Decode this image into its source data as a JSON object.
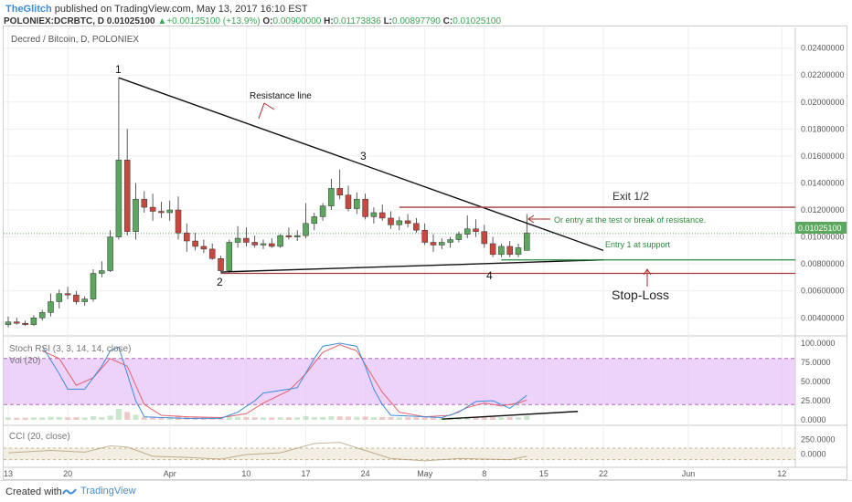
{
  "header": {
    "publisher": "TheGlitch",
    "published_text": "published on TradingView.com, May 13, 2017 16:10 EST",
    "symbol": "POLONIEX:DCRBTC, D",
    "last": "0.01025100",
    "change": "+0.00125100 (+13.9%)",
    "o_label": "O:",
    "o": "0.00900000",
    "h_label": "H:",
    "h": "0.01173836",
    "l_label": "L:",
    "l": "0.00897790",
    "c_label": "C:",
    "c": "0.01025100"
  },
  "footer": {
    "created_with": "Created with",
    "brand": "TradingView"
  },
  "colors": {
    "up": "#5aa75d",
    "down": "#c9473e",
    "price_label_bg": "#5aa75d",
    "stoch_k": "#3d8dd8",
    "stoch_d": "#e8606a",
    "band_fill": "#e7c3f8",
    "exit_line": "#a33a3a",
    "entry_line": "#2e8a3a",
    "stop_line": "#a33a3a",
    "annotation_red": "#b02a2a",
    "annotation_green": "#2e8a3a"
  },
  "chart_data": {
    "type": "candlestick",
    "title": "Decred / Bitcoin, D, POLONIEX",
    "last_price_label": "0.01025100",
    "y_ticks": [
      "0.02400000",
      "0.02200000",
      "0.02000000",
      "0.01800000",
      "0.01600000",
      "0.01400000",
      "0.01200000",
      "0.01000000",
      "0.00800000",
      "0.00600000",
      "0.00400000"
    ],
    "y_tick_values": [
      0.024,
      0.022,
      0.02,
      0.018,
      0.016,
      0.014,
      0.012,
      0.01,
      0.008,
      0.006,
      0.004
    ],
    "ylim": [
      0.0028,
      0.0254
    ],
    "x_tick_labels": [
      "13",
      "20",
      "Apr",
      "10",
      "17",
      "24",
      "May",
      "8",
      "15",
      "22",
      "Jun",
      "12"
    ],
    "x_tick_days": [
      0,
      7,
      19,
      28,
      35,
      42,
      49,
      56,
      63,
      70,
      80,
      91
    ],
    "candles": [
      {
        "d": 0,
        "o": 0.0035,
        "h": 0.0041,
        "l": 0.0033,
        "c": 0.0037
      },
      {
        "d": 1,
        "o": 0.0037,
        "h": 0.004,
        "l": 0.0035,
        "c": 0.0036
      },
      {
        "d": 2,
        "o": 0.0036,
        "h": 0.0038,
        "l": 0.0034,
        "c": 0.0035
      },
      {
        "d": 3,
        "o": 0.0035,
        "h": 0.0042,
        "l": 0.0034,
        "c": 0.004
      },
      {
        "d": 4,
        "o": 0.004,
        "h": 0.0046,
        "l": 0.0038,
        "c": 0.0044
      },
      {
        "d": 5,
        "o": 0.0044,
        "h": 0.0058,
        "l": 0.0041,
        "c": 0.0052
      },
      {
        "d": 6,
        "o": 0.0052,
        "h": 0.0061,
        "l": 0.0047,
        "c": 0.0058
      },
      {
        "d": 7,
        "o": 0.0058,
        "h": 0.0063,
        "l": 0.0054,
        "c": 0.0057
      },
      {
        "d": 8,
        "o": 0.0057,
        "h": 0.006,
        "l": 0.005,
        "c": 0.0052
      },
      {
        "d": 9,
        "o": 0.0052,
        "h": 0.0056,
        "l": 0.0049,
        "c": 0.0054
      },
      {
        "d": 10,
        "o": 0.0054,
        "h": 0.0076,
        "l": 0.0052,
        "c": 0.0073
      },
      {
        "d": 11,
        "o": 0.0073,
        "h": 0.0082,
        "l": 0.007,
        "c": 0.0075
      },
      {
        "d": 12,
        "o": 0.0075,
        "h": 0.0105,
        "l": 0.0074,
        "c": 0.01
      },
      {
        "d": 13,
        "o": 0.01,
        "h": 0.0218,
        "l": 0.0098,
        "c": 0.0157
      },
      {
        "d": 14,
        "o": 0.0157,
        "h": 0.018,
        "l": 0.0101,
        "c": 0.0104
      },
      {
        "d": 15,
        "o": 0.0104,
        "h": 0.014,
        "l": 0.0098,
        "c": 0.0128
      },
      {
        "d": 16,
        "o": 0.0128,
        "h": 0.0134,
        "l": 0.0118,
        "c": 0.0122
      },
      {
        "d": 17,
        "o": 0.0122,
        "h": 0.0132,
        "l": 0.0112,
        "c": 0.0119
      },
      {
        "d": 18,
        "o": 0.0119,
        "h": 0.0126,
        "l": 0.0114,
        "c": 0.0118
      },
      {
        "d": 19,
        "o": 0.0118,
        "h": 0.0127,
        "l": 0.0112,
        "c": 0.012
      },
      {
        "d": 20,
        "o": 0.012,
        "h": 0.013,
        "l": 0.0098,
        "c": 0.0103
      },
      {
        "d": 21,
        "o": 0.0103,
        "h": 0.011,
        "l": 0.0089,
        "c": 0.0097
      },
      {
        "d": 22,
        "o": 0.0097,
        "h": 0.0103,
        "l": 0.009,
        "c": 0.0093
      },
      {
        "d": 23,
        "o": 0.0093,
        "h": 0.0098,
        "l": 0.0088,
        "c": 0.0091
      },
      {
        "d": 24,
        "o": 0.0091,
        "h": 0.0095,
        "l": 0.0083,
        "c": 0.0084
      },
      {
        "d": 25,
        "o": 0.0084,
        "h": 0.0086,
        "l": 0.0074,
        "c": 0.0075
      },
      {
        "d": 26,
        "o": 0.0075,
        "h": 0.0098,
        "l": 0.0073,
        "c": 0.0096
      },
      {
        "d": 27,
        "o": 0.0096,
        "h": 0.0108,
        "l": 0.0092,
        "c": 0.0099
      },
      {
        "d": 28,
        "o": 0.0099,
        "h": 0.0107,
        "l": 0.0093,
        "c": 0.0096
      },
      {
        "d": 29,
        "o": 0.0096,
        "h": 0.0101,
        "l": 0.0092,
        "c": 0.0094
      },
      {
        "d": 30,
        "o": 0.0094,
        "h": 0.0098,
        "l": 0.0091,
        "c": 0.0095
      },
      {
        "d": 31,
        "o": 0.0095,
        "h": 0.0099,
        "l": 0.0092,
        "c": 0.0093
      },
      {
        "d": 32,
        "o": 0.0093,
        "h": 0.0102,
        "l": 0.0092,
        "c": 0.0101
      },
      {
        "d": 33,
        "o": 0.0101,
        "h": 0.0107,
        "l": 0.0098,
        "c": 0.01
      },
      {
        "d": 34,
        "o": 0.01,
        "h": 0.0105,
        "l": 0.0097,
        "c": 0.0101
      },
      {
        "d": 35,
        "o": 0.0101,
        "h": 0.0125,
        "l": 0.0099,
        "c": 0.011
      },
      {
        "d": 36,
        "o": 0.011,
        "h": 0.0118,
        "l": 0.0105,
        "c": 0.0115
      },
      {
        "d": 37,
        "o": 0.0115,
        "h": 0.0125,
        "l": 0.0112,
        "c": 0.0123
      },
      {
        "d": 38,
        "o": 0.0123,
        "h": 0.0143,
        "l": 0.012,
        "c": 0.0136
      },
      {
        "d": 39,
        "o": 0.0136,
        "h": 0.015,
        "l": 0.0128,
        "c": 0.0131
      },
      {
        "d": 40,
        "o": 0.0131,
        "h": 0.0138,
        "l": 0.0119,
        "c": 0.0121
      },
      {
        "d": 41,
        "o": 0.0121,
        "h": 0.0133,
        "l": 0.0117,
        "c": 0.0128
      },
      {
        "d": 42,
        "o": 0.0128,
        "h": 0.0132,
        "l": 0.0113,
        "c": 0.0115
      },
      {
        "d": 43,
        "o": 0.0115,
        "h": 0.0122,
        "l": 0.011,
        "c": 0.0118
      },
      {
        "d": 44,
        "o": 0.0118,
        "h": 0.0124,
        "l": 0.0112,
        "c": 0.0114
      },
      {
        "d": 45,
        "o": 0.0114,
        "h": 0.0119,
        "l": 0.0106,
        "c": 0.0109
      },
      {
        "d": 46,
        "o": 0.0109,
        "h": 0.0115,
        "l": 0.0105,
        "c": 0.0112
      },
      {
        "d": 47,
        "o": 0.0112,
        "h": 0.0117,
        "l": 0.0107,
        "c": 0.011
      },
      {
        "d": 48,
        "o": 0.011,
        "h": 0.0114,
        "l": 0.0103,
        "c": 0.0105
      },
      {
        "d": 49,
        "o": 0.0105,
        "h": 0.011,
        "l": 0.0094,
        "c": 0.0096
      },
      {
        "d": 50,
        "o": 0.0096,
        "h": 0.0102,
        "l": 0.0089,
        "c": 0.0094
      },
      {
        "d": 51,
        "o": 0.0094,
        "h": 0.0099,
        "l": 0.0091,
        "c": 0.0096
      },
      {
        "d": 52,
        "o": 0.0096,
        "h": 0.01,
        "l": 0.0092,
        "c": 0.0098
      },
      {
        "d": 53,
        "o": 0.0098,
        "h": 0.0104,
        "l": 0.0096,
        "c": 0.0102
      },
      {
        "d": 54,
        "o": 0.0102,
        "h": 0.0116,
        "l": 0.0099,
        "c": 0.0106
      },
      {
        "d": 55,
        "o": 0.0106,
        "h": 0.0113,
        "l": 0.01,
        "c": 0.0104
      },
      {
        "d": 56,
        "o": 0.0104,
        "h": 0.0109,
        "l": 0.0092,
        "c": 0.0095
      },
      {
        "d": 57,
        "o": 0.0095,
        "h": 0.01,
        "l": 0.0085,
        "c": 0.0087
      },
      {
        "d": 58,
        "o": 0.0087,
        "h": 0.0095,
        "l": 0.0085,
        "c": 0.0093
      },
      {
        "d": 59,
        "o": 0.0093,
        "h": 0.0097,
        "l": 0.0085,
        "c": 0.0087
      },
      {
        "d": 60,
        "o": 0.0087,
        "h": 0.0095,
        "l": 0.0085,
        "c": 0.0092
      },
      {
        "d": 61,
        "o": 0.009,
        "h": 0.0117,
        "l": 0.009,
        "c": 0.0103
      }
    ],
    "lines": [
      {
        "name": "resistance",
        "d1": 13,
        "p1": 0.0218,
        "d2": 70,
        "p2": 0.009
      },
      {
        "name": "support",
        "d1": 25,
        "p1": 0.0074,
        "d2": 70,
        "p2": 0.0083
      }
    ],
    "hlines": [
      {
        "name": "exit",
        "price": 0.0122,
        "d_from": 46
      },
      {
        "name": "entry",
        "price": 0.0083,
        "d_from": 58
      },
      {
        "name": "stop",
        "price": 0.0073,
        "d_from": 25
      }
    ],
    "annotations": {
      "n1": "1",
      "n2": "2",
      "n3": "3",
      "n4": "4",
      "resistance_line": "Resistance line",
      "exit": "Exit 1/2",
      "or_entry": "Or entry at the test or break of resistance.",
      "entry1": "Entry 1 at support",
      "stop_loss": "Stop-Loss"
    },
    "stoch": {
      "label": "Stoch RSI (3, 3, 14, 14, close)",
      "vol_label": "Vol (20)",
      "y_ticks": [
        "100.0000",
        "75.0000",
        "50.0000",
        "25.0000",
        "0.0000"
      ],
      "y_tick_values": [
        100,
        75,
        50,
        25,
        0
      ],
      "band": [
        20,
        80
      ],
      "k": [
        [
          4,
          96
        ],
        [
          6,
          60
        ],
        [
          7,
          40
        ],
        [
          9,
          40
        ],
        [
          11,
          70
        ],
        [
          12,
          90
        ],
        [
          13,
          95
        ],
        [
          15,
          25
        ],
        [
          16,
          4
        ],
        [
          18,
          3
        ],
        [
          21,
          2
        ],
        [
          25,
          2
        ],
        [
          27,
          10
        ],
        [
          29,
          25
        ],
        [
          30,
          35
        ],
        [
          33,
          40
        ],
        [
          34,
          42
        ],
        [
          36,
          80
        ],
        [
          37,
          96
        ],
        [
          39,
          100
        ],
        [
          41,
          96
        ],
        [
          42,
          70
        ],
        [
          43,
          40
        ],
        [
          44,
          20
        ],
        [
          45,
          6
        ],
        [
          47,
          5
        ],
        [
          51,
          3
        ],
        [
          53,
          10
        ],
        [
          55,
          24
        ],
        [
          57,
          25
        ],
        [
          59,
          15
        ],
        [
          61,
          32
        ]
      ],
      "d": [
        [
          4,
          90
        ],
        [
          6,
          80
        ],
        [
          8,
          45
        ],
        [
          10,
          55
        ],
        [
          12,
          80
        ],
        [
          14,
          70
        ],
        [
          16,
          20
        ],
        [
          18,
          6
        ],
        [
          21,
          4
        ],
        [
          25,
          3
        ],
        [
          28,
          8
        ],
        [
          30,
          22
        ],
        [
          33,
          38
        ],
        [
          35,
          60
        ],
        [
          37,
          88
        ],
        [
          39,
          98
        ],
        [
          41,
          90
        ],
        [
          42,
          72
        ],
        [
          44,
          36
        ],
        [
          46,
          10
        ],
        [
          49,
          4
        ],
        [
          52,
          6
        ],
        [
          54,
          16
        ],
        [
          56,
          22
        ],
        [
          58,
          18
        ],
        [
          60,
          22
        ],
        [
          61,
          26
        ]
      ]
    },
    "cci": {
      "label": "CCI (20, close)",
      "y_ticks": [
        "250.0000",
        "0.0000"
      ],
      "y_tick_values": [
        250,
        0
      ]
    }
  }
}
